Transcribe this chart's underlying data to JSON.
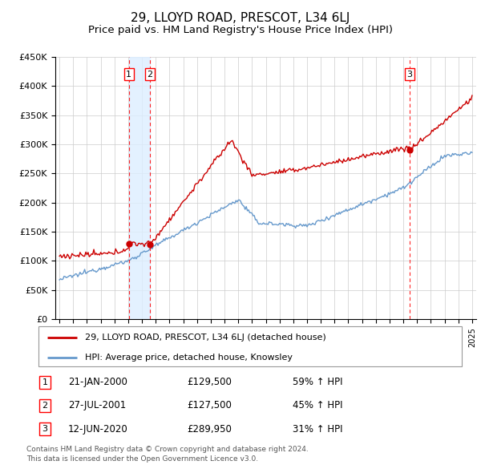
{
  "title": "29, LLOYD ROAD, PRESCOT, L34 6LJ",
  "subtitle": "Price paid vs. HM Land Registry's House Price Index (HPI)",
  "title_fontsize": 11,
  "subtitle_fontsize": 9.5,
  "ylim": [
    0,
    450000
  ],
  "yticks": [
    0,
    50000,
    100000,
    150000,
    200000,
    250000,
    300000,
    350000,
    400000,
    450000
  ],
  "ytick_labels": [
    "£0",
    "£50K",
    "£100K",
    "£150K",
    "£200K",
    "£250K",
    "£300K",
    "£350K",
    "£400K",
    "£450K"
  ],
  "xlim_start": 1994.7,
  "xlim_end": 2025.3,
  "transactions": [
    {
      "num": 1,
      "date": "21-JAN-2000",
      "price": 129500,
      "pct": "59%",
      "year": 2000.05
    },
    {
      "num": 2,
      "date": "27-JUL-2001",
      "price": 127500,
      "pct": "45%",
      "year": 2001.57
    },
    {
      "num": 3,
      "date": "12-JUN-2020",
      "price": 289950,
      "pct": "31%",
      "year": 2020.45
    }
  ],
  "legend_property": "29, LLOYD ROAD, PRESCOT, L34 6LJ (detached house)",
  "legend_hpi": "HPI: Average price, detached house, Knowsley",
  "footer1": "Contains HM Land Registry data © Crown copyright and database right 2024.",
  "footer2": "This data is licensed under the Open Government Licence v3.0.",
  "property_color": "#cc0000",
  "hpi_color": "#6699cc",
  "span_color": "#ddeeff",
  "background_color": "#ffffff",
  "grid_color": "#cccccc"
}
